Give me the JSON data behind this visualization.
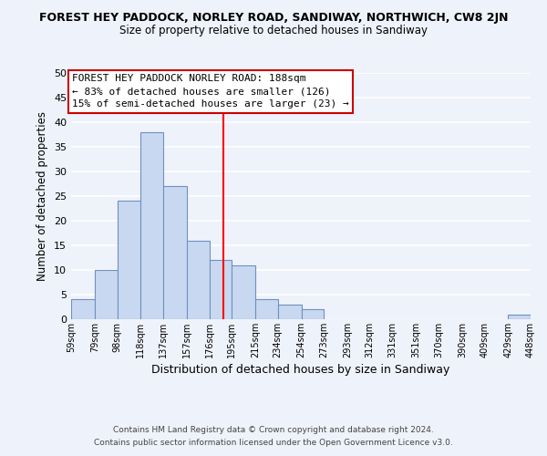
{
  "title": "FOREST HEY PADDOCK, NORLEY ROAD, SANDIWAY, NORTHWICH, CW8 2JN",
  "subtitle": "Size of property relative to detached houses in Sandiway",
  "xlabel": "Distribution of detached houses by size in Sandiway",
  "ylabel": "Number of detached properties",
  "bar_color": "#c8d8f0",
  "bar_edge_color": "#7090c0",
  "vline_x": 188,
  "vline_color": "red",
  "bin_edges": [
    59,
    79,
    98,
    118,
    137,
    157,
    176,
    195,
    215,
    234,
    254,
    273,
    293,
    312,
    331,
    351,
    370,
    390,
    409,
    429,
    448
  ],
  "bar_heights": [
    4,
    10,
    24,
    38,
    27,
    16,
    12,
    11,
    4,
    3,
    2,
    0,
    0,
    0,
    0,
    0,
    0,
    0,
    0,
    1
  ],
  "tick_labels": [
    "59sqm",
    "79sqm",
    "98sqm",
    "118sqm",
    "137sqm",
    "157sqm",
    "176sqm",
    "195sqm",
    "215sqm",
    "234sqm",
    "254sqm",
    "273sqm",
    "293sqm",
    "312sqm",
    "331sqm",
    "351sqm",
    "370sqm",
    "390sqm",
    "409sqm",
    "429sqm",
    "448sqm"
  ],
  "ylim": [
    0,
    50
  ],
  "yticks": [
    0,
    5,
    10,
    15,
    20,
    25,
    30,
    35,
    40,
    45,
    50
  ],
  "annotation_title": "FOREST HEY PADDOCK NORLEY ROAD: 188sqm",
  "annotation_line1": "← 83% of detached houses are smaller (126)",
  "annotation_line2": "15% of semi-detached houses are larger (23) →",
  "footnote1": "Contains HM Land Registry data © Crown copyright and database right 2024.",
  "footnote2": "Contains public sector information licensed under the Open Government Licence v3.0.",
  "background_color": "#eef2fb",
  "grid_color": "#ffffff"
}
